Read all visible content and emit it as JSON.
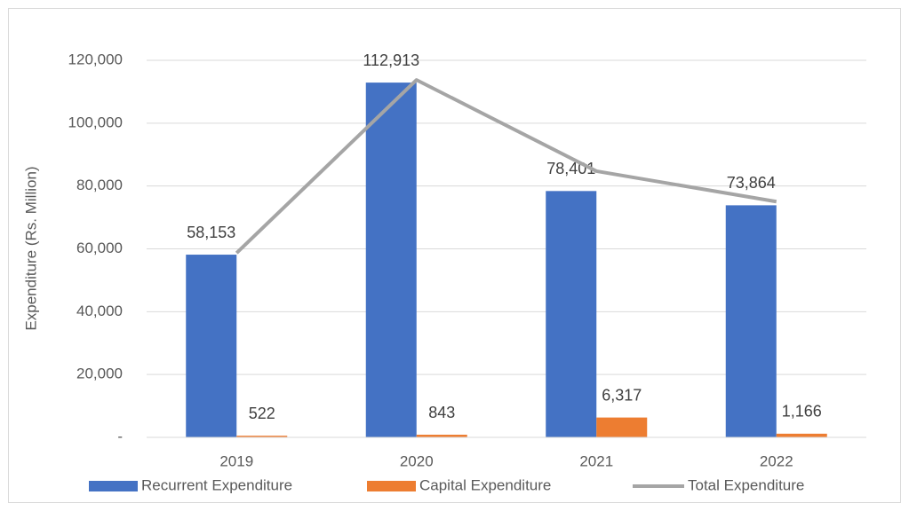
{
  "chart_data": {
    "type": "bar",
    "y_label": "Expenditure (Rs. Million)",
    "categories": [
      "2019",
      "2020",
      "2021",
      "2022"
    ],
    "series": [
      {
        "name": "Recurrent Expenditure",
        "color": "#4472c4",
        "type": "bar",
        "values": [
          58153,
          112913,
          78401,
          73864
        ],
        "value_labels": [
          "58,153",
          "112,913",
          "78,401",
          "73,864"
        ]
      },
      {
        "name": "Capital Expenditure",
        "color": "#ed7d31",
        "type": "bar",
        "values": [
          522,
          843,
          6317,
          1166
        ],
        "value_labels": [
          "522",
          "843",
          "6,317",
          "1,166"
        ]
      },
      {
        "name": "Total Expenditure",
        "color": "#a5a5a5",
        "type": "line",
        "values": [
          58675,
          113756,
          84718,
          75030
        ]
      }
    ],
    "ylim": [
      0,
      120000
    ],
    "yticks": [
      {
        "value": 0,
        "label": "-"
      },
      {
        "value": 20000,
        "label": "20,000"
      },
      {
        "value": 40000,
        "label": "40,000"
      },
      {
        "value": 60000,
        "label": "60,000"
      },
      {
        "value": 80000,
        "label": "80,000"
      },
      {
        "value": 100000,
        "label": "100,000"
      },
      {
        "value": 120000,
        "label": "120,000"
      }
    ],
    "grid": true,
    "legend": "bottom"
  }
}
